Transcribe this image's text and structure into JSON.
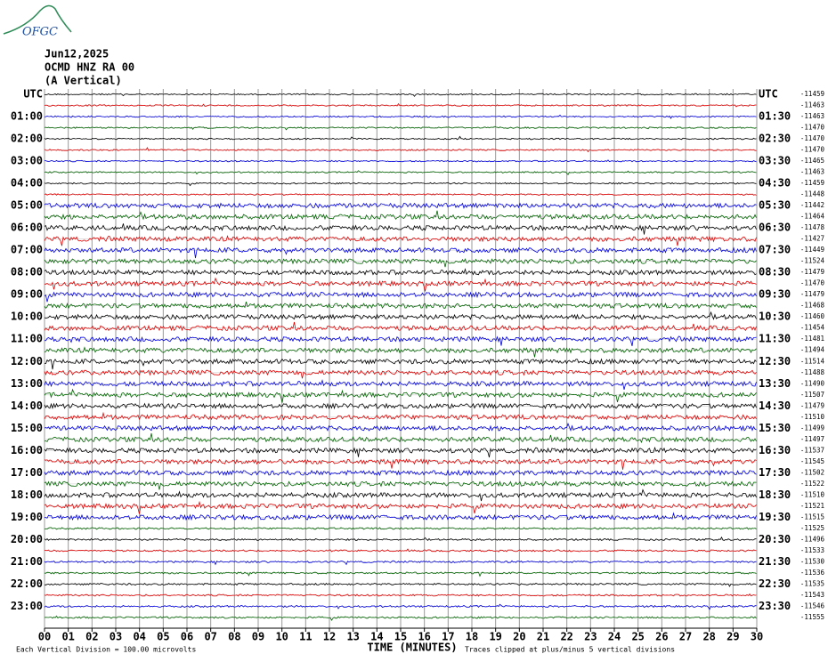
{
  "logo_text": "OFGC",
  "header": {
    "date": "Jun12,2025",
    "station": "OCMD HNZ RA 00",
    "component": "(A Vertical)"
  },
  "left_labels": [
    "UTC",
    "01:00",
    "02:00",
    "03:00",
    "04:00",
    "05:00",
    "06:00",
    "07:00",
    "08:00",
    "09:00",
    "10:00",
    "11:00",
    "12:00",
    "13:00",
    "14:00",
    "15:00",
    "16:00",
    "17:00",
    "18:00",
    "19:00",
    "20:00",
    "21:00",
    "22:00",
    "23:00"
  ],
  "right_labels": [
    "UTC",
    "01:30",
    "02:30",
    "03:30",
    "04:30",
    "05:30",
    "06:30",
    "07:30",
    "08:30",
    "09:30",
    "10:30",
    "11:30",
    "12:30",
    "13:30",
    "14:30",
    "15:30",
    "16:30",
    "17:30",
    "18:30",
    "19:30",
    "20:30",
    "21:30",
    "22:30",
    "23:30"
  ],
  "offsets": [
    "-11459",
    "-11463",
    "-11463",
    "-11470",
    "-11470",
    "-11470",
    "-11465",
    "-11463",
    "-11459",
    "-11448",
    "-11442",
    "-11464",
    "-11478",
    "-11427",
    "-11449",
    "-11524",
    "-11479",
    "-11470",
    "-11479",
    "-11468",
    "-11460",
    "-11454",
    "-11481",
    "-11494",
    "-11514",
    "-11488",
    "-11490",
    "-11507",
    "-11479",
    "-11510",
    "-11499",
    "-11497",
    "-11537",
    "-11545",
    "-11502",
    "-11522",
    "-11510",
    "-11521",
    "-11515",
    "-11525",
    "-11496",
    "-11533",
    "-11530",
    "-11536",
    "-11535",
    "-11543",
    "-11546",
    "-11555"
  ],
  "minute_labels": [
    "00",
    "01",
    "02",
    "03",
    "04",
    "05",
    "06",
    "07",
    "08",
    "09",
    "10",
    "11",
    "12",
    "13",
    "14",
    "15",
    "16",
    "17",
    "18",
    "19",
    "20",
    "21",
    "22",
    "23",
    "24",
    "25",
    "26",
    "27",
    "28",
    "29",
    "30"
  ],
  "x_axis_title": "TIME (MINUTES)",
  "footer": {
    "scale": "Each Vertical Division =  100.00 microvolts",
    "note": "Traces clipped at plus/minus 5 vertical divisions"
  },
  "trace_colors": [
    "#000000",
    "#e00000",
    "#0000e0",
    "#006400"
  ]
}
